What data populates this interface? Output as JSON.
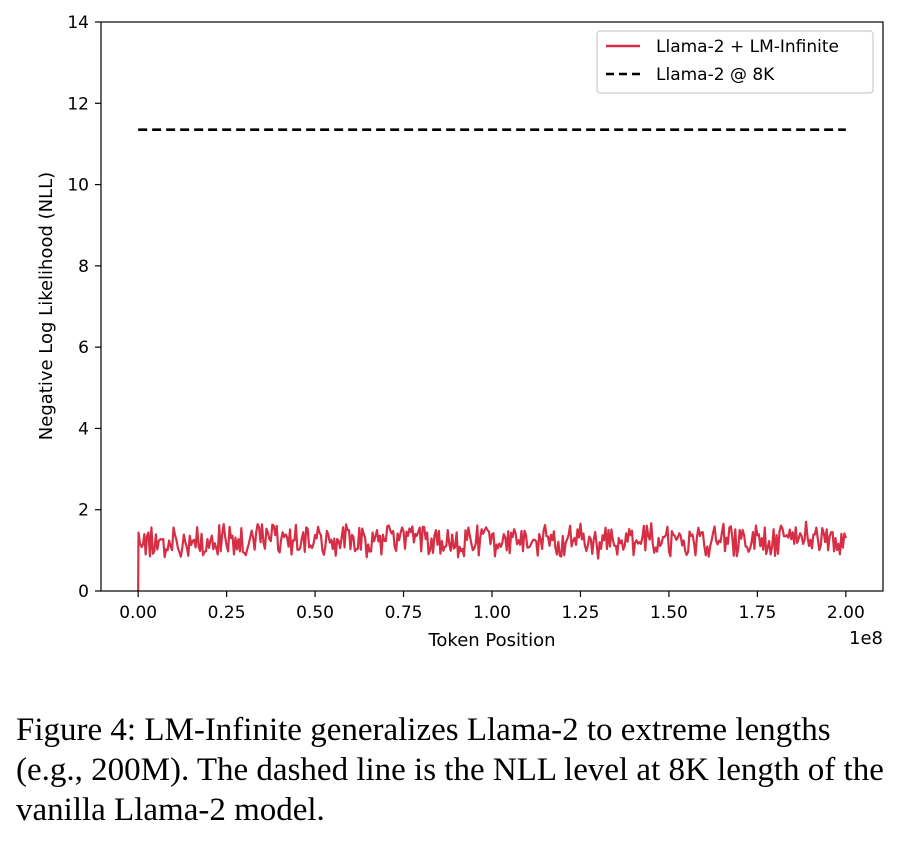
{
  "chart_data": {
    "type": "line",
    "xlabel": "Token Position",
    "ylabel": "Negative Log Likelihood (NLL)",
    "x_offset_label": "1e8",
    "xlim": [
      -0.105,
      2.105
    ],
    "ylim": [
      0,
      14
    ],
    "x_ticks": [
      0.0,
      0.25,
      0.5,
      0.75,
      1.0,
      1.25,
      1.5,
      1.75,
      2.0
    ],
    "x_tick_labels": [
      "0.00",
      "0.25",
      "0.50",
      "0.75",
      "1.00",
      "1.25",
      "1.50",
      "1.75",
      "2.00"
    ],
    "y_ticks": [
      0,
      2,
      4,
      6,
      8,
      10,
      12,
      14
    ],
    "y_tick_labels": [
      "0",
      "2",
      "4",
      "6",
      "8",
      "10",
      "12",
      "14"
    ],
    "grid": false,
    "legend_position": "top-right",
    "series": [
      {
        "name": "Llama-2 + LM-Infinite",
        "style": "solid",
        "color": "#d62f45",
        "x": [
          0.0,
          0.001,
          0.005,
          0.01,
          0.025,
          0.05,
          0.075,
          0.1,
          0.125,
          0.15,
          0.175,
          0.2,
          0.25,
          0.3,
          0.35,
          0.4,
          0.45,
          0.5,
          0.55,
          0.6,
          0.65,
          0.7,
          0.75,
          0.8,
          0.85,
          0.9,
          0.95,
          1.0,
          1.05,
          1.1,
          1.15,
          1.2,
          1.25,
          1.3,
          1.35,
          1.4,
          1.45,
          1.5,
          1.55,
          1.6,
          1.65,
          1.7,
          1.75,
          1.8,
          1.85,
          1.9,
          1.95,
          2.0
        ],
        "y": [
          0.0,
          1.2,
          1.1,
          1.3,
          1.15,
          1.25,
          1.2,
          1.35,
          1.1,
          1.3,
          1.25,
          1.2,
          1.3,
          1.15,
          1.4,
          1.2,
          1.3,
          1.25,
          1.2,
          1.35,
          1.15,
          1.3,
          1.25,
          1.2,
          1.3,
          1.15,
          1.25,
          1.2,
          1.3,
          1.15,
          1.25,
          1.2,
          1.3,
          1.15,
          1.25,
          1.2,
          1.3,
          1.2,
          1.25,
          1.15,
          1.3,
          1.2,
          1.25,
          1.2,
          1.3,
          1.4,
          1.2,
          1.3
        ]
      },
      {
        "name": "Llama-2 @ 8K",
        "style": "dashed",
        "color": "#000000",
        "x": [
          0.0,
          2.0
        ],
        "y": [
          11.35,
          11.35
        ]
      }
    ]
  },
  "caption": "Figure 4: LM-Infinite generalizes Llama-2 to extreme lengths (e.g., 200M). The dashed line is the NLL level at 8K length of the vanilla Llama-2 model."
}
